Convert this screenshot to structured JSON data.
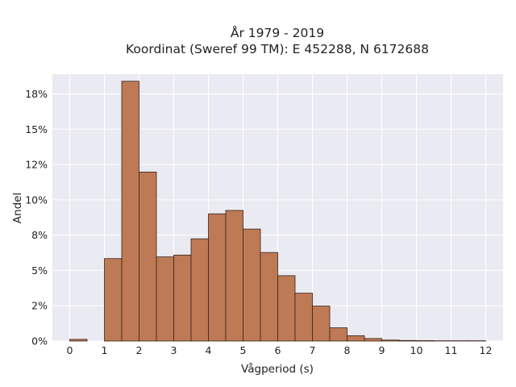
{
  "chart_data": {
    "type": "bar",
    "title_line1": "År 1979 - 2019",
    "title_line2": "Koordinat (Sweref 99 TM): E 452288, N 6172688",
    "xlabel": "Vågperiod (s)",
    "ylabel": "Andel",
    "xlim": [
      -0.5,
      12.5
    ],
    "ylim": [
      0,
      0.189
    ],
    "grid": true,
    "xticks": [
      0,
      1,
      2,
      3,
      4,
      5,
      6,
      7,
      8,
      9,
      10,
      11,
      12
    ],
    "xtick_labels": [
      "0",
      "1",
      "2",
      "3",
      "4",
      "5",
      "6",
      "7",
      "8",
      "9",
      "10",
      "11",
      "12"
    ],
    "yticks": [
      0,
      0.025,
      0.05,
      0.075,
      0.1,
      0.125,
      0.15,
      0.175
    ],
    "ytick_labels": [
      "0%",
      "2%",
      "5%",
      "8%",
      "10%",
      "12%",
      "15%",
      "18%"
    ],
    "bar_width": 0.5,
    "bin_starts": [
      0,
      1,
      1.5,
      2,
      2.5,
      3,
      3.5,
      4,
      4.5,
      5,
      5.5,
      6,
      6.5,
      7,
      7.5,
      8,
      8.5,
      9,
      9.5,
      10,
      10.5,
      11,
      11.5
    ],
    "values": [
      0.0012,
      0.0584,
      0.184,
      0.1197,
      0.0596,
      0.0609,
      0.0724,
      0.0901,
      0.0925,
      0.0793,
      0.0627,
      0.0463,
      0.0339,
      0.0248,
      0.0094,
      0.0038,
      0.0018,
      0.0007,
      0.0004,
      0.0003,
      0.0002,
      0.0002,
      0.0002
    ],
    "colors": {
      "bar_fill": "#bd7a55",
      "bar_edge": "#3a2418",
      "plot_bg": "#eaeaf2",
      "grid": "#ffffff"
    }
  }
}
